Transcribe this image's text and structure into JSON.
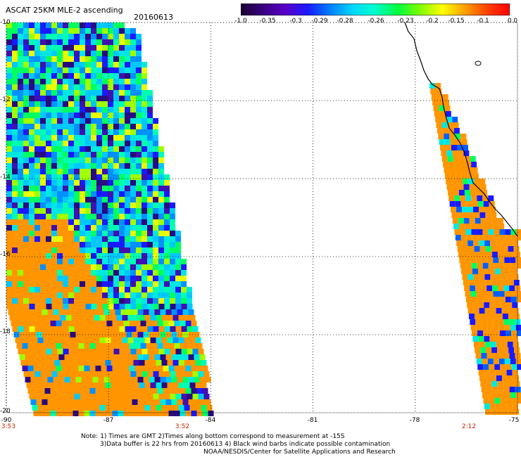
{
  "header": {
    "title": "ASCAT 25KM MLE-2 ascending",
    "date": "20160613"
  },
  "colorbar": {
    "labels": [
      "-1.0",
      "-0.35",
      "-0.3",
      "-0.29",
      "-0.28",
      "-0.26",
      "-0.23",
      "-0.2",
      "-0.15",
      "-0.1",
      "0.0"
    ],
    "colors": [
      "#1a0033",
      "#3a0080",
      "#5a00c8",
      "#1a1aff",
      "#0080ff",
      "#00d8ff",
      "#00ffcc",
      "#00ff40",
      "#80ff00",
      "#ffff00",
      "#ffa000",
      "#ff4000",
      "#ff0000"
    ]
  },
  "map": {
    "lat_labels": [
      "-10",
      "-12",
      "-14",
      "-16",
      "-18",
      "-20"
    ],
    "lon_labels": [
      "-90",
      "-87",
      "-84",
      "-81",
      "-78",
      "-75"
    ],
    "lat_range": [
      -20,
      -10
    ],
    "lon_range": [
      -90,
      -75
    ],
    "times": [
      "3:53",
      "3:52",
      "2:12"
    ],
    "coastline_color": "#000000",
    "buffer_color": "#ff9500"
  },
  "notes": {
    "line1": "Note: 1) Times are GMT 2)Times along bottom correspond to measurement at -15S",
    "line2": "3)Data buffer is 22 hrs from 20160613 4) Black wind barbs indicate possible contamination",
    "line3": "NOAA/NESDIS/Center for Satellite Applications and Research"
  }
}
